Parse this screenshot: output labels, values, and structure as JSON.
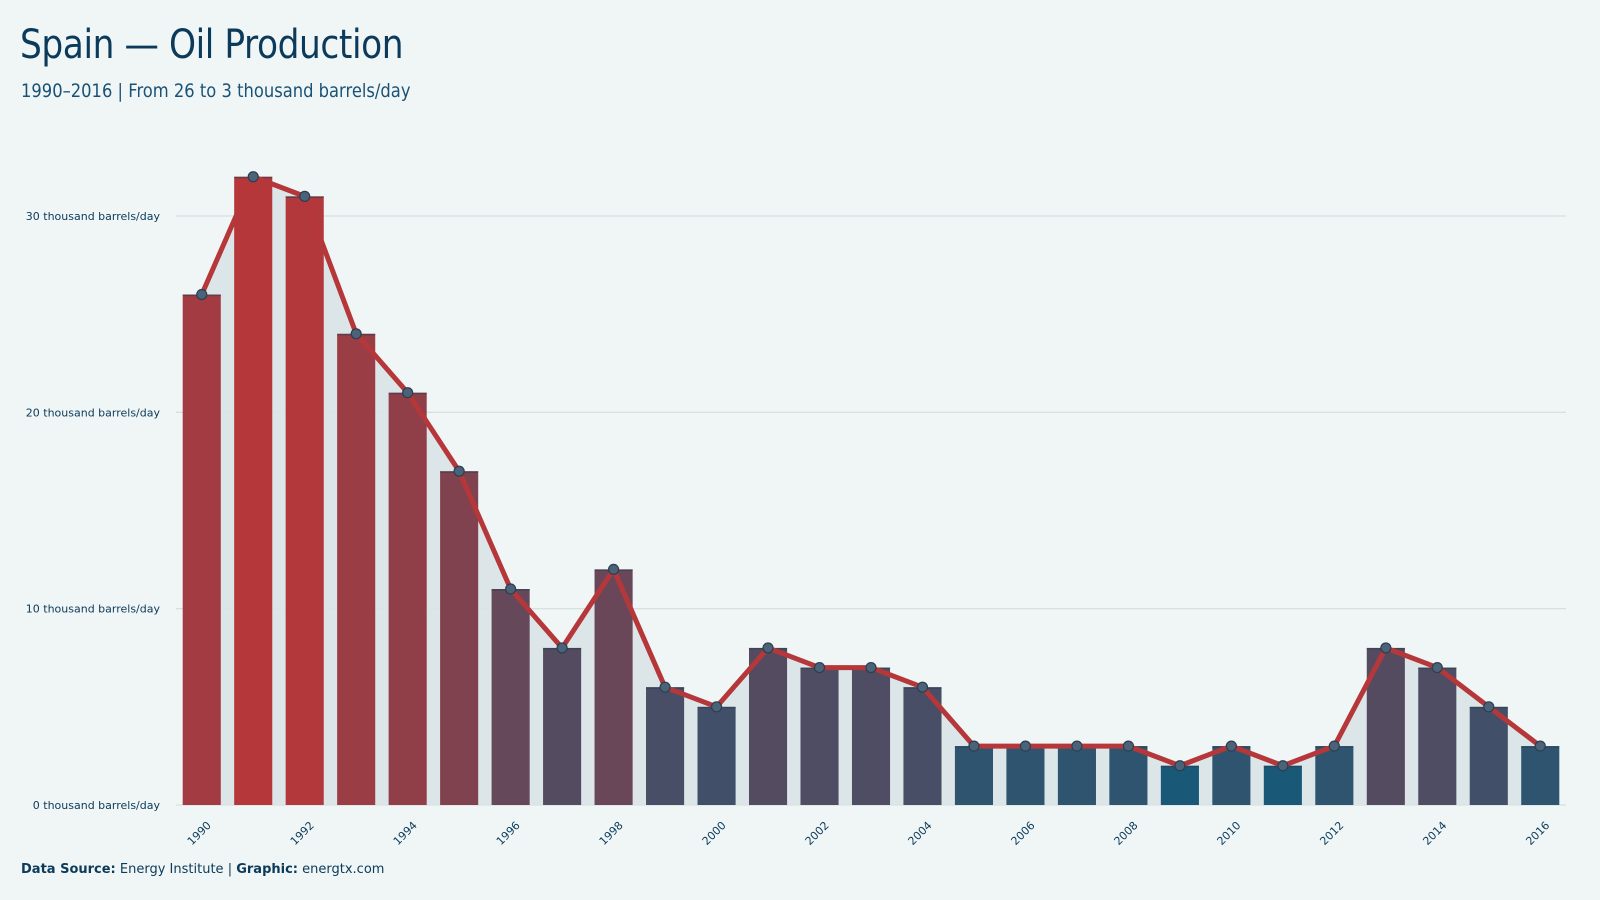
{
  "chart_data": {
    "type": "bar",
    "title": "Spain — Oil Production",
    "subtitle": "1990–2016 | From 26 to 3 thousand barrels/day",
    "unit": "thousand barrels/day",
    "x": [
      1990,
      1991,
      1992,
      1993,
      1994,
      1995,
      1996,
      1997,
      1998,
      1999,
      2000,
      2001,
      2002,
      2003,
      2004,
      2005,
      2006,
      2007,
      2008,
      2009,
      2010,
      2011,
      2012,
      2013,
      2014,
      2015,
      2016
    ],
    "values": [
      26,
      32,
      31,
      24,
      21,
      17,
      11,
      8,
      12,
      6,
      5,
      8,
      7,
      7,
      6,
      3,
      3,
      3,
      3,
      2,
      3,
      2,
      3,
      8,
      7,
      5,
      3
    ],
    "x_tick_labels": [
      "1990",
      "1992",
      "1994",
      "1996",
      "1998",
      "2000",
      "2002",
      "2004",
      "2006",
      "2008",
      "2010",
      "2012",
      "2014",
      "2016"
    ],
    "y_ticks": [
      {
        "value": 0,
        "label": "0 thousand barrels/day"
      },
      {
        "value": 10,
        "label": "10 thousand barrels/day"
      },
      {
        "value": 20,
        "label": "20 thousand barrels/day"
      },
      {
        "value": 30,
        "label": "30 thousand barrels/day"
      }
    ],
    "ylim": [
      0,
      32
    ],
    "grid": true,
    "overlay": "line-with-markers",
    "colors": {
      "high": "#b5373a",
      "low": "#1a5878",
      "line": "#b5373a",
      "area": "#d9e4e8",
      "grid": "#d8e0e2",
      "marker_stroke": "#2c3e50"
    }
  },
  "footer": {
    "source_label": "Data Source:",
    "source_value": "Energy Institute",
    "separator": "|",
    "graphic_label": "Graphic:",
    "graphic_value": "energtx.com"
  }
}
